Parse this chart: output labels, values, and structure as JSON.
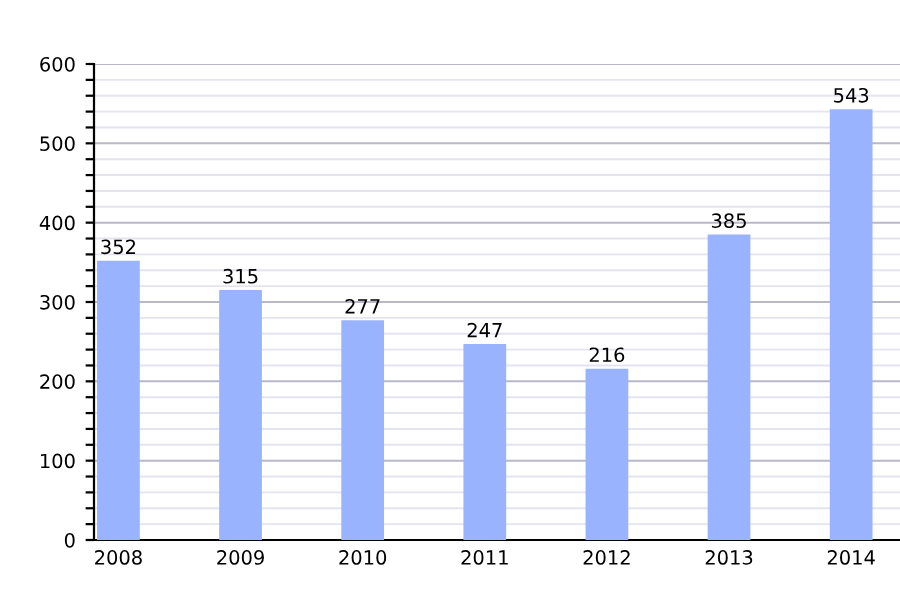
{
  "chart_data": {
    "type": "bar",
    "categories": [
      "2008",
      "2009",
      "2010",
      "2011",
      "2012",
      "2013",
      "2014"
    ],
    "values": [
      352,
      315,
      277,
      247,
      216,
      385,
      543
    ],
    "color": "#99b3ff",
    "data_labels": true,
    "grid": "y",
    "ylim": [
      0,
      600
    ],
    "yticks": [
      0,
      {
        "value": 20,
        "label": null
      },
      {
        "value": 40,
        "label": null
      },
      {
        "value": 60,
        "label": null
      },
      {
        "value": 80,
        "label": null
      },
      100,
      {
        "value": 120,
        "label": null
      },
      {
        "value": 140,
        "label": null
      },
      {
        "value": 160,
        "label": null
      },
      {
        "value": 180,
        "label": null
      },
      200,
      {
        "value": 220,
        "label": null
      },
      {
        "value": 240,
        "label": null
      },
      {
        "value": 260,
        "label": null
      },
      {
        "value": 280,
        "label": null
      },
      300,
      {
        "value": 320,
        "label": null
      },
      {
        "value": 340,
        "label": null
      },
      {
        "value": 360,
        "label": null
      },
      {
        "value": 380,
        "label": null
      },
      400,
      {
        "value": 420,
        "label": null
      },
      {
        "value": 440,
        "label": null
      },
      {
        "value": 460,
        "label": null
      },
      {
        "value": 480,
        "label": null
      },
      500,
      {
        "value": 520,
        "label": null
      },
      {
        "value": 540,
        "label": null
      },
      {
        "value": 560,
        "label": null
      },
      {
        "value": 580,
        "label": null
      },
      600
    ]
  }
}
